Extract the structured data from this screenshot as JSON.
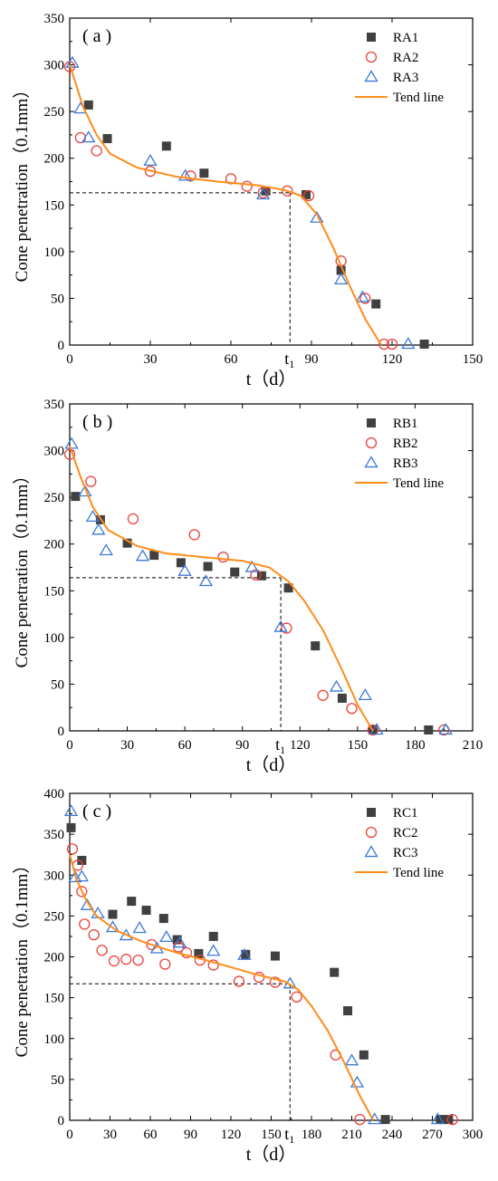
{
  "chart_data": [
    {
      "type": "scatter",
      "panel_label": "( a )",
      "xlabel": "t（d）",
      "ylabel": "Cone penetration（0.1mm）",
      "xlim": [
        0,
        150
      ],
      "ylim": [
        0,
        350
      ],
      "xticks": [
        0,
        30,
        60,
        90,
        120,
        150
      ],
      "yticks": [
        0,
        50,
        100,
        150,
        200,
        250,
        300,
        350
      ],
      "threshold": {
        "label": "t",
        "sub": "1",
        "x": 82,
        "y": 163
      },
      "legend_position": "top-right",
      "series": [
        {
          "name": "RA1",
          "marker": "square",
          "color": "#404040",
          "x": [
            7,
            14,
            36,
            50,
            73,
            88,
            101,
            114,
            132
          ],
          "y": [
            257,
            221,
            213,
            184,
            165,
            161,
            80,
            44,
            1
          ]
        },
        {
          "name": "RA2",
          "marker": "circle",
          "color": "#e8423c",
          "x": [
            0,
            4,
            10,
            30,
            45,
            60,
            66,
            72,
            81,
            89,
            101,
            110,
            117,
            120
          ],
          "y": [
            298,
            222,
            208,
            186,
            181,
            178,
            170,
            163,
            165,
            160,
            90,
            50,
            1,
            1
          ]
        },
        {
          "name": "RA3",
          "marker": "triangle",
          "color": "#3b78d8",
          "x": [
            1,
            4,
            7,
            30,
            43,
            72,
            92,
            101,
            109,
            126
          ],
          "y": [
            302,
            253,
            222,
            197,
            181,
            161,
            136,
            70,
            51,
            1
          ]
        },
        {
          "name": "Tend line",
          "marker": "line",
          "color": "#ff8c1a",
          "x": [
            0,
            5,
            10,
            15,
            25,
            40,
            55,
            70,
            80,
            86,
            92,
            98,
            104,
            110,
            116
          ],
          "y": [
            300,
            255,
            225,
            205,
            190,
            180,
            175,
            171,
            166,
            160,
            140,
            105,
            65,
            28,
            0
          ]
        }
      ]
    },
    {
      "type": "scatter",
      "panel_label": "( b )",
      "xlabel": "t（d）",
      "ylabel": "Cone penetration（0.1mm）",
      "xlim": [
        0,
        210
      ],
      "ylim": [
        0,
        350
      ],
      "xticks": [
        0,
        30,
        60,
        90,
        120,
        150,
        180,
        210
      ],
      "yticks": [
        0,
        50,
        100,
        150,
        200,
        250,
        300,
        350
      ],
      "threshold": {
        "label": "t",
        "sub": "1",
        "x": 110,
        "y": 164
      },
      "legend_position": "top-right",
      "series": [
        {
          "name": "RB1",
          "marker": "square",
          "color": "#404040",
          "x": [
            3,
            16,
            30,
            44,
            58,
            72,
            86,
            100,
            114,
            128,
            142,
            158,
            187
          ],
          "y": [
            251,
            226,
            201,
            188,
            180,
            176,
            170,
            166,
            153,
            91,
            35,
            1,
            1
          ]
        },
        {
          "name": "RB2",
          "marker": "circle",
          "color": "#e8423c",
          "x": [
            0,
            11,
            33,
            65,
            80,
            97,
            113,
            132,
            147,
            158,
            195
          ],
          "y": [
            296,
            267,
            227,
            210,
            186,
            167,
            110,
            38,
            24,
            1,
            1
          ]
        },
        {
          "name": "RB3",
          "marker": "triangle",
          "color": "#3b78d8",
          "x": [
            1,
            8,
            12,
            15,
            19,
            38,
            60,
            71,
            95,
            110,
            139,
            154,
            160,
            196
          ],
          "y": [
            307,
            256,
            229,
            215,
            193,
            187,
            171,
            160,
            175,
            111,
            47,
            38,
            1,
            1
          ]
        },
        {
          "name": "Tend line",
          "marker": "line",
          "color": "#ff8c1a",
          "x": [
            0,
            6,
            12,
            20,
            35,
            50,
            70,
            90,
            104,
            114,
            122,
            132,
            142,
            150,
            158
          ],
          "y": [
            305,
            270,
            240,
            215,
            198,
            190,
            186,
            182,
            175,
            160,
            140,
            108,
            65,
            28,
            0
          ]
        }
      ]
    },
    {
      "type": "scatter",
      "panel_label": "( c )",
      "xlabel": "t（d）",
      "ylabel": "Cone penetration（0.1mm）",
      "xlim": [
        0,
        300
      ],
      "ylim": [
        0,
        400
      ],
      "xticks": [
        0,
        30,
        60,
        90,
        120,
        150,
        180,
        210,
        240,
        270,
        300
      ],
      "yticks": [
        0,
        50,
        100,
        150,
        200,
        250,
        300,
        350,
        400
      ],
      "threshold": {
        "label": "t",
        "sub": "1",
        "x": 164,
        "y": 167
      },
      "legend_position": "top-right",
      "series": [
        {
          "name": "RC1",
          "marker": "square",
          "color": "#404040",
          "x": [
            1,
            9,
            32,
            46,
            57,
            70,
            80,
            96,
            107,
            131,
            153,
            197,
            207,
            219,
            235,
            276,
            282
          ],
          "y": [
            358,
            318,
            252,
            268,
            257,
            247,
            221,
            204,
            225,
            203,
            201,
            181,
            134,
            80,
            1,
            1,
            1
          ]
        },
        {
          "name": "RC2",
          "marker": "circle",
          "color": "#e8423c",
          "x": [
            2,
            6,
            9,
            11,
            18,
            24,
            33,
            42,
            51,
            61,
            71,
            81,
            87,
            97,
            107,
            126,
            141,
            153,
            169,
            198,
            216,
            285
          ],
          "y": [
            332,
            312,
            280,
            240,
            227,
            208,
            195,
            197,
            196,
            215,
            191,
            212,
            205,
            196,
            190,
            170,
            175,
            169,
            151,
            80,
            1,
            1
          ]
        },
        {
          "name": "RC3",
          "marker": "triangle",
          "color": "#3b78d8",
          "x": [
            1,
            4,
            9,
            13,
            21,
            32,
            42,
            52,
            65,
            72,
            82,
            107,
            130,
            164,
            210,
            214,
            227,
            274
          ],
          "y": [
            378,
            297,
            298,
            263,
            253,
            236,
            226,
            235,
            210,
            224,
            217,
            207,
            202,
            167,
            73,
            46,
            1,
            1
          ]
        },
        {
          "name": "Tend line",
          "marker": "line",
          "color": "#ff8c1a",
          "x": [
            0,
            5,
            12,
            20,
            35,
            55,
            80,
            110,
            140,
            160,
            170,
            180,
            192,
            204,
            216,
            226
          ],
          "y": [
            325,
            295,
            270,
            250,
            232,
            218,
            205,
            192,
            178,
            170,
            160,
            140,
            110,
            72,
            30,
            0
          ]
        }
      ]
    }
  ]
}
